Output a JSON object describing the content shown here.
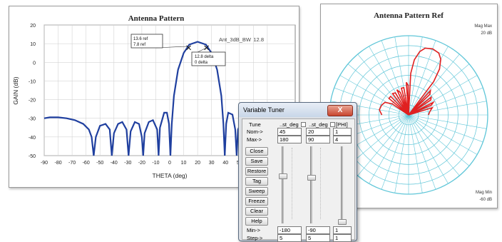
{
  "rect_plot": {
    "title": "Antenna Pattern",
    "xlabel": "THETA (deg)",
    "ylabel": "GAIN (dB)",
    "legend_text": "Ant_3dB_BW",
    "legend_value": "12.8",
    "marker1": {
      "line1": "13.6 ref",
      "line2": "7.8 ref"
    },
    "marker2": {
      "line1": "12.8 delta",
      "line2": "0 delta"
    }
  },
  "polar_plot": {
    "title": "Antenna Pattern Ref",
    "mag_max_label": "Mag Max",
    "mag_max_value": "20 dB",
    "mag_min_label": "Mag Min",
    "mag_min_value": "-60 dB",
    "curve_color": "#e02020",
    "grid_color": "#5fc6d8"
  },
  "chart_data": [
    {
      "type": "line",
      "title": "Antenna Pattern",
      "xlabel": "THETA (deg)",
      "ylabel": "GAIN (dB)",
      "xlim": [
        -90,
        90
      ],
      "ylim": [
        -50,
        20
      ],
      "xticks": [
        "-90",
        "-80",
        "-70",
        "-60",
        "-50",
        "-40",
        "-30",
        "-20",
        "-10",
        "0",
        "10",
        "20",
        "30",
        "40",
        "50",
        "60",
        "70"
      ],
      "yticks": [
        "20",
        "10",
        "0",
        "-10",
        "-20",
        "-30",
        "-40",
        "-50"
      ],
      "grid": true,
      "legend": "top-right",
      "series": [
        {
          "name": "Ant_3dB_BW",
          "color": "#1f3f9f",
          "points": [
            [
              -90,
              -30
            ],
            [
              -86,
              -29.5
            ],
            [
              -80,
              -29.5
            ],
            [
              -74,
              -30
            ],
            [
              -68,
              -31
            ],
            [
              -62,
              -33
            ],
            [
              -58,
              -36
            ],
            [
              -56,
              -40
            ],
            [
              -54.5,
              -50
            ],
            [
              -53,
              -40
            ],
            [
              -50,
              -34
            ],
            [
              -46,
              -33
            ],
            [
              -43,
              -36
            ],
            [
              -41.5,
              -50
            ],
            [
              -40,
              -38
            ],
            [
              -37,
              -33
            ],
            [
              -34,
              -32
            ],
            [
              -31,
              -36
            ],
            [
              -29.5,
              -50
            ],
            [
              -28,
              -37
            ],
            [
              -25,
              -32
            ],
            [
              -22,
              -33
            ],
            [
              -20,
              -40
            ],
            [
              -19,
              -50
            ],
            [
              -18,
              -38
            ],
            [
              -15,
              -32
            ],
            [
              -12,
              -31
            ],
            [
              -9,
              -36
            ],
            [
              -8,
              -50
            ],
            [
              -7,
              -35
            ],
            [
              -4,
              -27
            ],
            [
              -2,
              -27
            ],
            [
              -0.5,
              -33
            ],
            [
              0.5,
              -50
            ],
            [
              1.5,
              -33
            ],
            [
              3,
              -18
            ],
            [
              6,
              -4
            ],
            [
              10,
              5
            ],
            [
              14,
              9.5
            ],
            [
              20,
              11
            ],
            [
              26,
              9.5
            ],
            [
              30,
              5
            ],
            [
              34,
              -4
            ],
            [
              37,
              -18
            ],
            [
              38.5,
              -33
            ],
            [
              39.5,
              -50
            ],
            [
              40.5,
              -33
            ],
            [
              42,
              -27
            ],
            [
              45,
              -28
            ],
            [
              47,
              -36
            ],
            [
              48,
              -50
            ],
            [
              49,
              -36
            ],
            [
              52,
              -31
            ],
            [
              55,
              -32
            ],
            [
              58,
              -38
            ],
            [
              59,
              -50
            ],
            [
              60,
              -38
            ],
            [
              63,
              -32
            ],
            [
              66,
              -33
            ],
            [
              68,
              -39
            ],
            [
              69,
              -50
            ],
            [
              70,
              -39
            ],
            [
              73,
              -35
            ],
            [
              75,
              -36
            ]
          ]
        }
      ],
      "markers": [
        {
          "x": 13.6,
          "y": 7.8
        },
        {
          "x": 26.4,
          "y": 7.8
        }
      ]
    },
    {
      "type": "polar",
      "title": "Antenna Pattern Ref",
      "rlim": [
        -60,
        20
      ],
      "grid": true,
      "series": [
        {
          "name": "",
          "color": "#e02020",
          "points": [
            [
              -90,
              -33
            ],
            [
              -80,
              -30
            ],
            [
              -70,
              -31
            ],
            [
              -62,
              -33
            ],
            [
              -56,
              -40
            ],
            [
              -54,
              -60
            ],
            [
              -50,
              -34
            ],
            [
              -44,
              -34
            ],
            [
              -41,
              -60
            ],
            [
              -37,
              -33
            ],
            [
              -31,
              -34
            ],
            [
              -29,
              -60
            ],
            [
              -25,
              -32
            ],
            [
              -20,
              -36
            ],
            [
              -19,
              -60
            ],
            [
              -15,
              -32
            ],
            [
              -10,
              -32
            ],
            [
              -8,
              -60
            ],
            [
              -4,
              -27
            ],
            [
              -1,
              -30
            ],
            [
              0.5,
              -60
            ],
            [
              3,
              -18
            ],
            [
              6,
              -4
            ],
            [
              10,
              5
            ],
            [
              14,
              9.5
            ],
            [
              20,
              11
            ],
            [
              26,
              9.5
            ],
            [
              30,
              5
            ],
            [
              34,
              -4
            ],
            [
              37,
              -18
            ],
            [
              39.5,
              -60
            ],
            [
              42,
              -27
            ],
            [
              46,
              -30
            ],
            [
              48,
              -60
            ],
            [
              52,
              -31
            ],
            [
              56,
              -33
            ],
            [
              59,
              -60
            ],
            [
              63,
              -32
            ],
            [
              67,
              -35
            ],
            [
              69,
              -60
            ],
            [
              73,
              -35
            ],
            [
              80,
              -38
            ],
            [
              90,
              -40
            ]
          ]
        }
      ]
    }
  ],
  "tuner": {
    "title": "Variable Tuner",
    "close_symbol": "X",
    "tune_label": "Tune",
    "nom_label": "Nom->",
    "max_label": "Max->",
    "min_label": "Min->",
    "step_label": "Step->",
    "columns": [
      {
        "header": "..st_deg",
        "nom": "45",
        "max": "180",
        "min": "-180",
        "step": "5",
        "slider_fraction": 0.625
      },
      {
        "header": "..st_deg",
        "nom": "20",
        "max": "90",
        "min": "-90",
        "step": "5",
        "slider_fraction": 0.611
      },
      {
        "header": "[PHI]",
        "nom": "1",
        "max": "4",
        "min": "1",
        "step": "1",
        "slider_fraction": 0.0
      }
    ],
    "buttons": [
      "Close",
      "Save",
      "Restore",
      "Tag",
      "Sweep",
      "Freeze",
      "Clear",
      "Help"
    ]
  }
}
